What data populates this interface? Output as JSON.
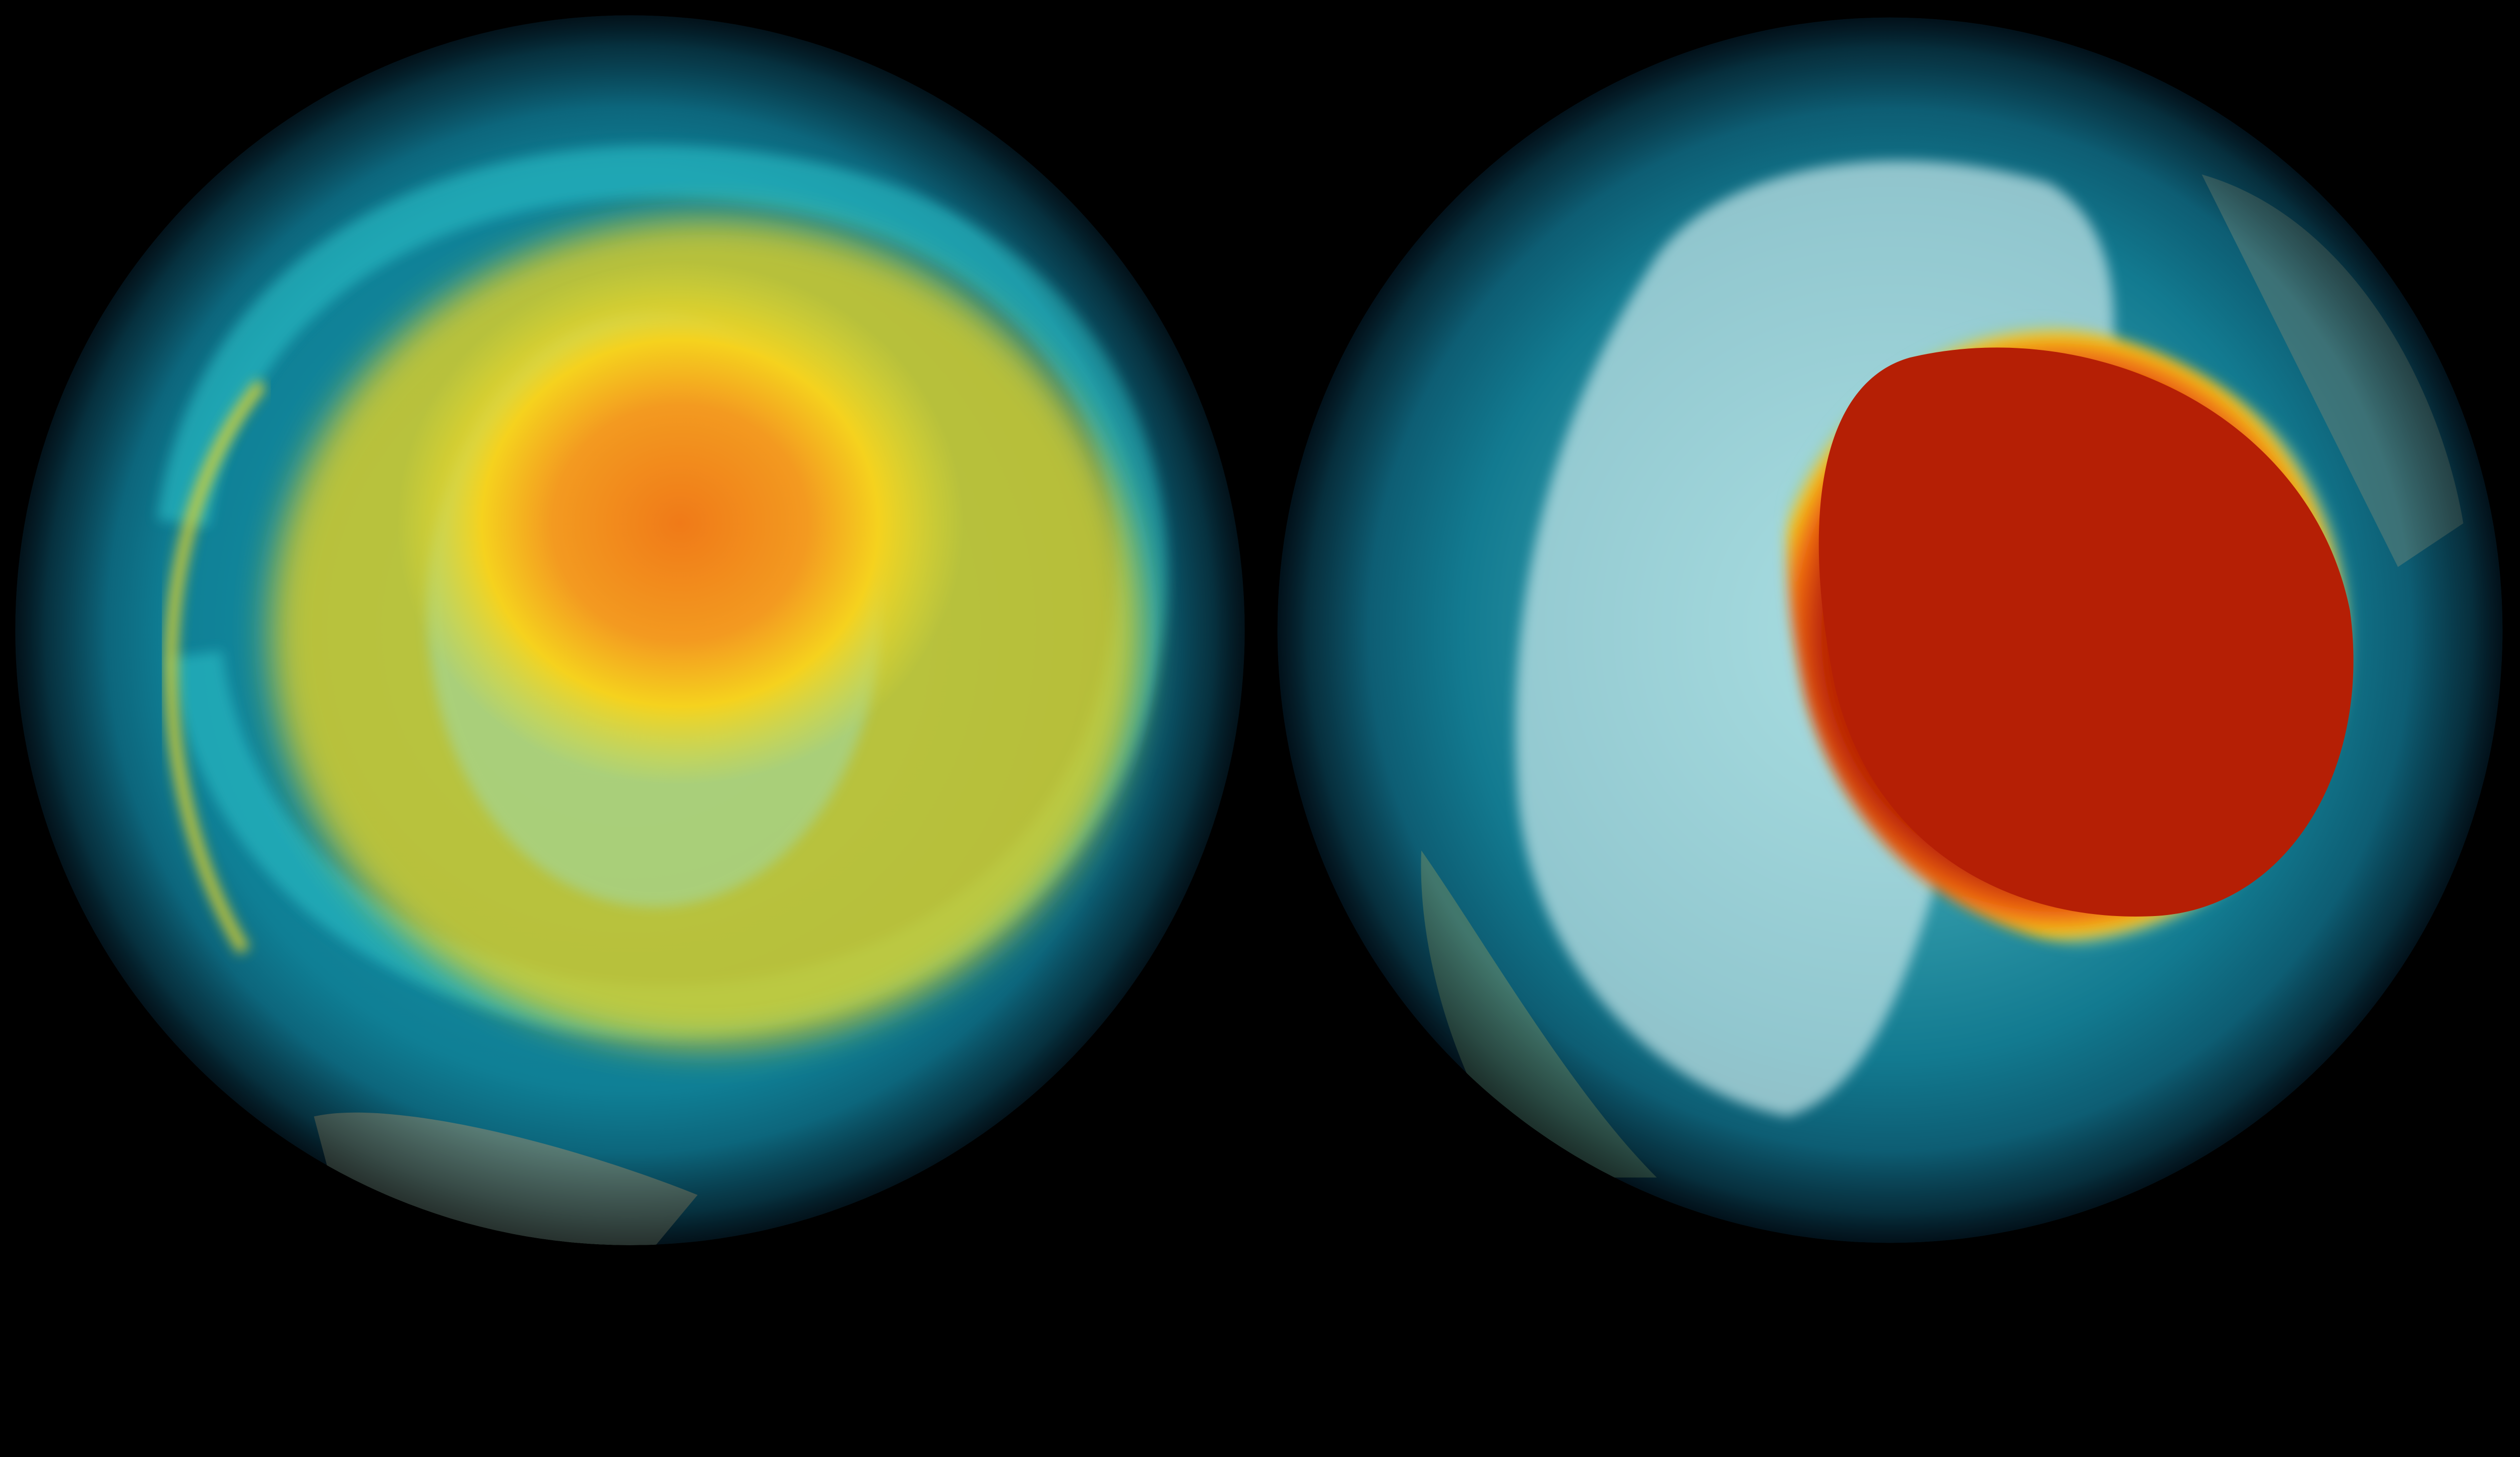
{
  "background_color": "#000000",
  "globes": [
    {
      "id": "left",
      "colors": {
        "ocean": "#0e6f86",
        "swirl": "#2bb7c4",
        "band": "#f2d21a",
        "core": "#f08a1c",
        "land": "#6a8f7f"
      }
    },
    {
      "id": "right",
      "colors": {
        "ocean": "#0d5f7a",
        "swirl": "#3ec9d0",
        "ice": "#bfe3e6",
        "ring": "#f0c21a",
        "core": "#b01e05",
        "land": "#4f7d6a"
      }
    }
  ]
}
